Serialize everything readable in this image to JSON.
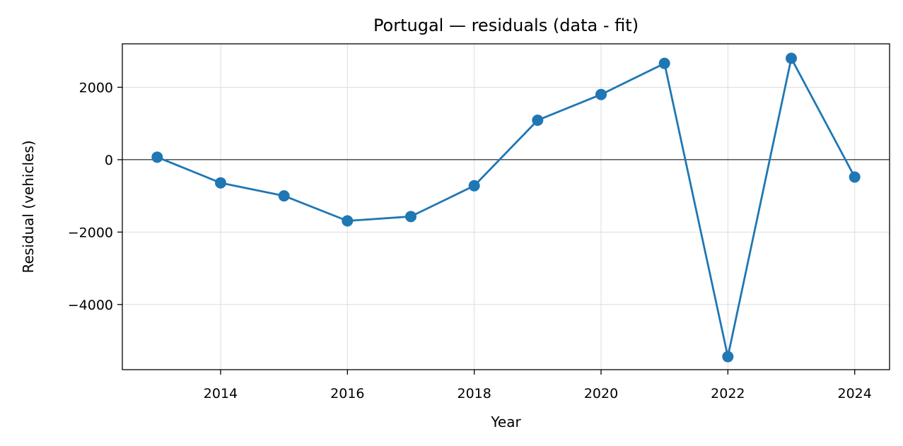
{
  "chart_data": {
    "type": "line",
    "title": "Portugal — residuals (data - fit)",
    "xlabel": "Year",
    "ylabel": "Residual (vehicles)",
    "xlim": [
      2012.45,
      2024.55
    ],
    "ylim": [
      -5800,
      3200
    ],
    "xticks": [
      2014,
      2016,
      2018,
      2020,
      2022,
      2024
    ],
    "yticks": [
      -4000,
      -2000,
      0,
      2000
    ],
    "ytick_labels": [
      "−4000",
      "−2000",
      "0",
      "2000"
    ],
    "grid": true,
    "zero_line": true,
    "colors": {
      "series": "#1f77b4",
      "zero_line": "#000000"
    },
    "series": [
      {
        "x": [
          2013,
          2014,
          2015,
          2016,
          2017,
          2018,
          2019,
          2020,
          2021,
          2022,
          2023,
          2024
        ],
        "y": [
          70,
          -640,
          -1000,
          -1690,
          -1570,
          -720,
          1090,
          1800,
          2660,
          -5440,
          2800,
          -480
        ]
      }
    ]
  }
}
